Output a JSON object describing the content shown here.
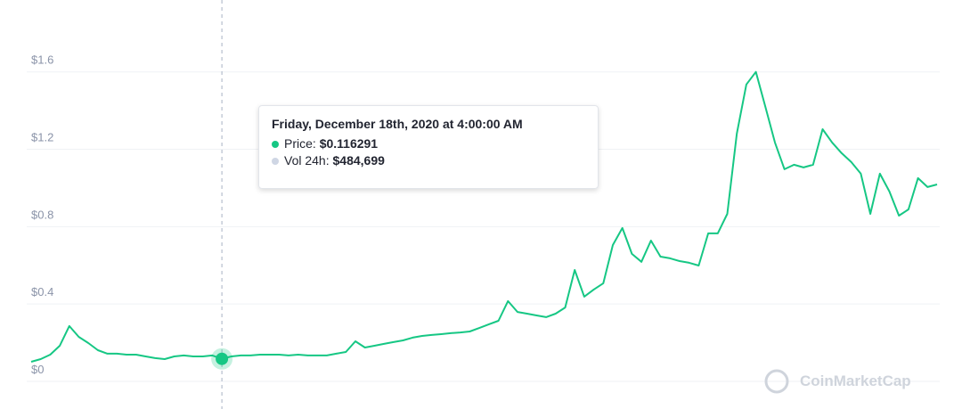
{
  "chart_data": {
    "type": "line",
    "color": "#16c784",
    "values": [
      0.101,
      0.115,
      0.138,
      0.184,
      0.286,
      0.23,
      0.198,
      0.161,
      0.143,
      0.143,
      0.138,
      0.138,
      0.129,
      0.12,
      0.115,
      0.129,
      0.134,
      0.129,
      0.129,
      0.134,
      0.116291,
      0.129,
      0.134,
      0.134,
      0.138,
      0.138,
      0.138,
      0.134,
      0.138,
      0.134,
      0.134,
      0.134,
      0.143,
      0.152,
      0.207,
      0.175,
      0.184,
      0.194,
      0.203,
      0.212,
      0.226,
      0.235,
      0.24,
      0.244,
      0.249,
      0.253,
      0.258,
      0.276,
      0.295,
      0.313,
      0.415,
      0.359,
      0.35,
      0.341,
      0.332,
      0.35,
      0.382,
      0.576,
      0.438,
      0.475,
      0.507,
      0.705,
      0.793,
      0.659,
      0.618,
      0.728,
      0.645,
      0.636,
      0.622,
      0.613,
      0.599,
      0.765,
      0.765,
      0.866,
      1.281,
      1.535,
      1.6,
      1.419,
      1.235,
      1.097,
      1.12,
      1.106,
      1.12,
      1.304,
      1.235,
      1.18,
      1.134,
      1.074,
      0.866,
      1.074,
      0.982,
      0.857,
      0.889,
      1.051,
      1.005,
      1.018
    ],
    "ylim": [
      -0.143,
      1.972
    ],
    "yticks": [
      {
        "value": 0,
        "label": "$0"
      },
      {
        "value": 0.4,
        "label": "$0.4"
      },
      {
        "value": 0.8,
        "label": "$0.8"
      },
      {
        "value": 1.2,
        "label": "$1.2"
      },
      {
        "value": 1.6,
        "label": "$1.6"
      }
    ],
    "grid": true,
    "tooltip": {
      "date": "Friday, December 18th, 2020 at 4:00:00 AM",
      "price_name": "Price:",
      "price": {
        "value": 0.116291,
        "label": "$0.116291"
      },
      "price_color": "#16c784",
      "volume_name": "Vol 24h:",
      "volume": "$484,699",
      "volume_color": "#cfd6e4"
    },
    "watermark": "CoinMarketCap"
  }
}
